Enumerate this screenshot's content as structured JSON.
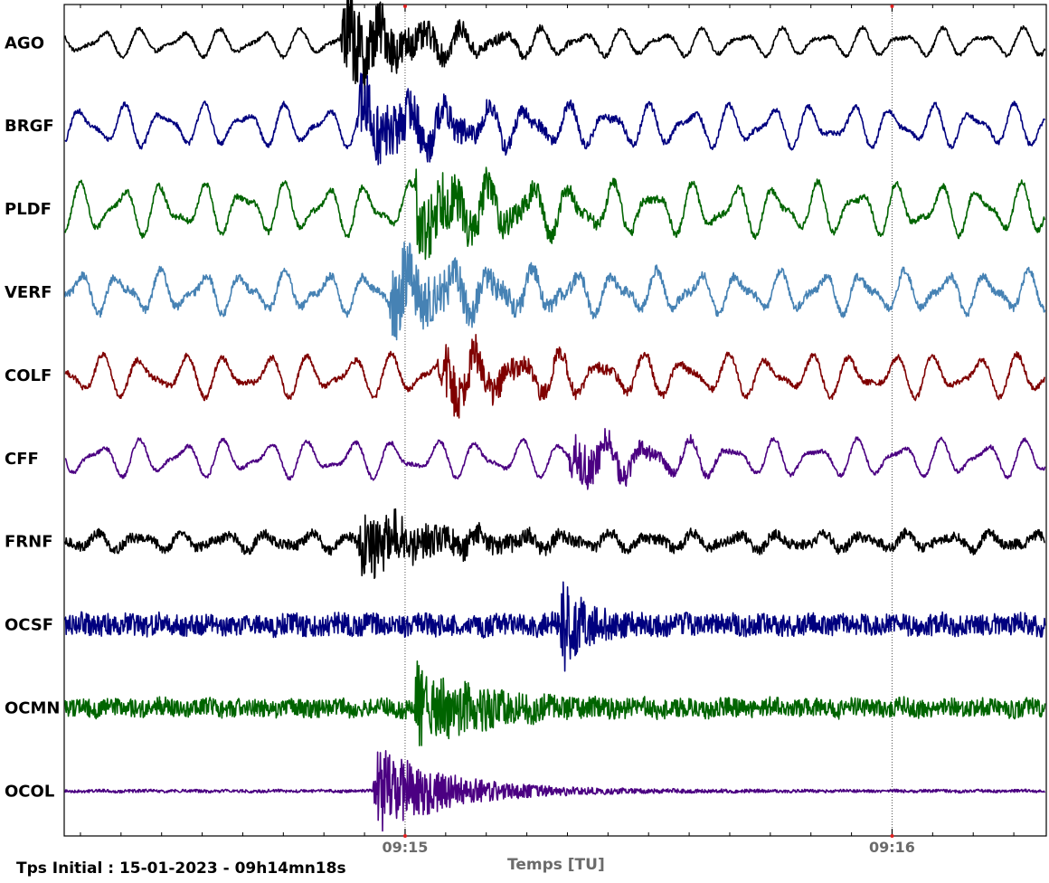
{
  "chart_data": {
    "type": "line",
    "title": "",
    "xlabel": "Temps [TU]",
    "ylabel": "",
    "x_start": "09:14:18",
    "x_end": "09:16:19",
    "xlim_seconds_after_start": [
      0,
      121
    ],
    "x_ticks": [
      {
        "label": "09:15",
        "time": "09:15:00"
      },
      {
        "label": "09:16",
        "time": "09:16:00"
      }
    ],
    "grid_vertical_at_major_ticks": true,
    "legend": "none",
    "series": [
      {
        "name": "AGO",
        "color": "#000000",
        "onset_time": "09:14:52",
        "coda_end_time": "09:15:08",
        "peak_amplitude": 1.0,
        "background_level": 0.3,
        "noise_level": 0.04
      },
      {
        "name": "BRGF",
        "color": "#00007f",
        "onset_time": "09:14:54",
        "coda_end_time": "09:15:16",
        "peak_amplitude": 0.75,
        "background_level": 0.45,
        "noise_level": 0.05
      },
      {
        "name": "PLDF",
        "color": "#006400",
        "onset_time": "09:15:01",
        "coda_end_time": "09:15:20",
        "peak_amplitude": 0.8,
        "background_level": 0.55,
        "noise_level": 0.06
      },
      {
        "name": "VERF",
        "color": "#4682b4",
        "onset_time": "09:14:58",
        "coda_end_time": "09:15:17",
        "peak_amplitude": 0.75,
        "background_level": 0.45,
        "noise_level": 0.08
      },
      {
        "name": "COLF",
        "color": "#7f0000",
        "onset_time": "09:15:04",
        "coda_end_time": "09:15:22",
        "peak_amplitude": 0.55,
        "background_level": 0.45,
        "noise_level": 0.06
      },
      {
        "name": "CFF",
        "color": "#4b0082",
        "onset_time": "09:15:20",
        "coda_end_time": "09:15:33",
        "peak_amplitude": 0.55,
        "background_level": 0.4,
        "noise_level": 0.04
      },
      {
        "name": "FRNF",
        "color": "#000000",
        "onset_time": "09:14:54",
        "coda_end_time": "09:15:14",
        "peak_amplitude": 0.65,
        "background_level": 0.18,
        "noise_level": 0.1
      },
      {
        "name": "OCSF",
        "color": "#00007f",
        "onset_time": "09:15:19",
        "coda_end_time": "09:15:25",
        "peak_amplitude": 0.75,
        "background_level": 0.05,
        "noise_level": 0.22
      },
      {
        "name": "OCMN",
        "color": "#006400",
        "onset_time": "09:15:01",
        "coda_end_time": "09:15:18",
        "peak_amplitude": 0.75,
        "background_level": 0.05,
        "noise_level": 0.18
      },
      {
        "name": "OCOL",
        "color": "#4b0082",
        "onset_time": "09:14:56",
        "coda_end_time": "09:15:15",
        "peak_amplitude": 0.9,
        "background_level": 0.01,
        "noise_level": 0.03
      }
    ]
  },
  "footer": {
    "initial_time": "Tps Initial : 15-01-2023 - 09h14mn18s",
    "axis_label": "Temps [TU]"
  }
}
